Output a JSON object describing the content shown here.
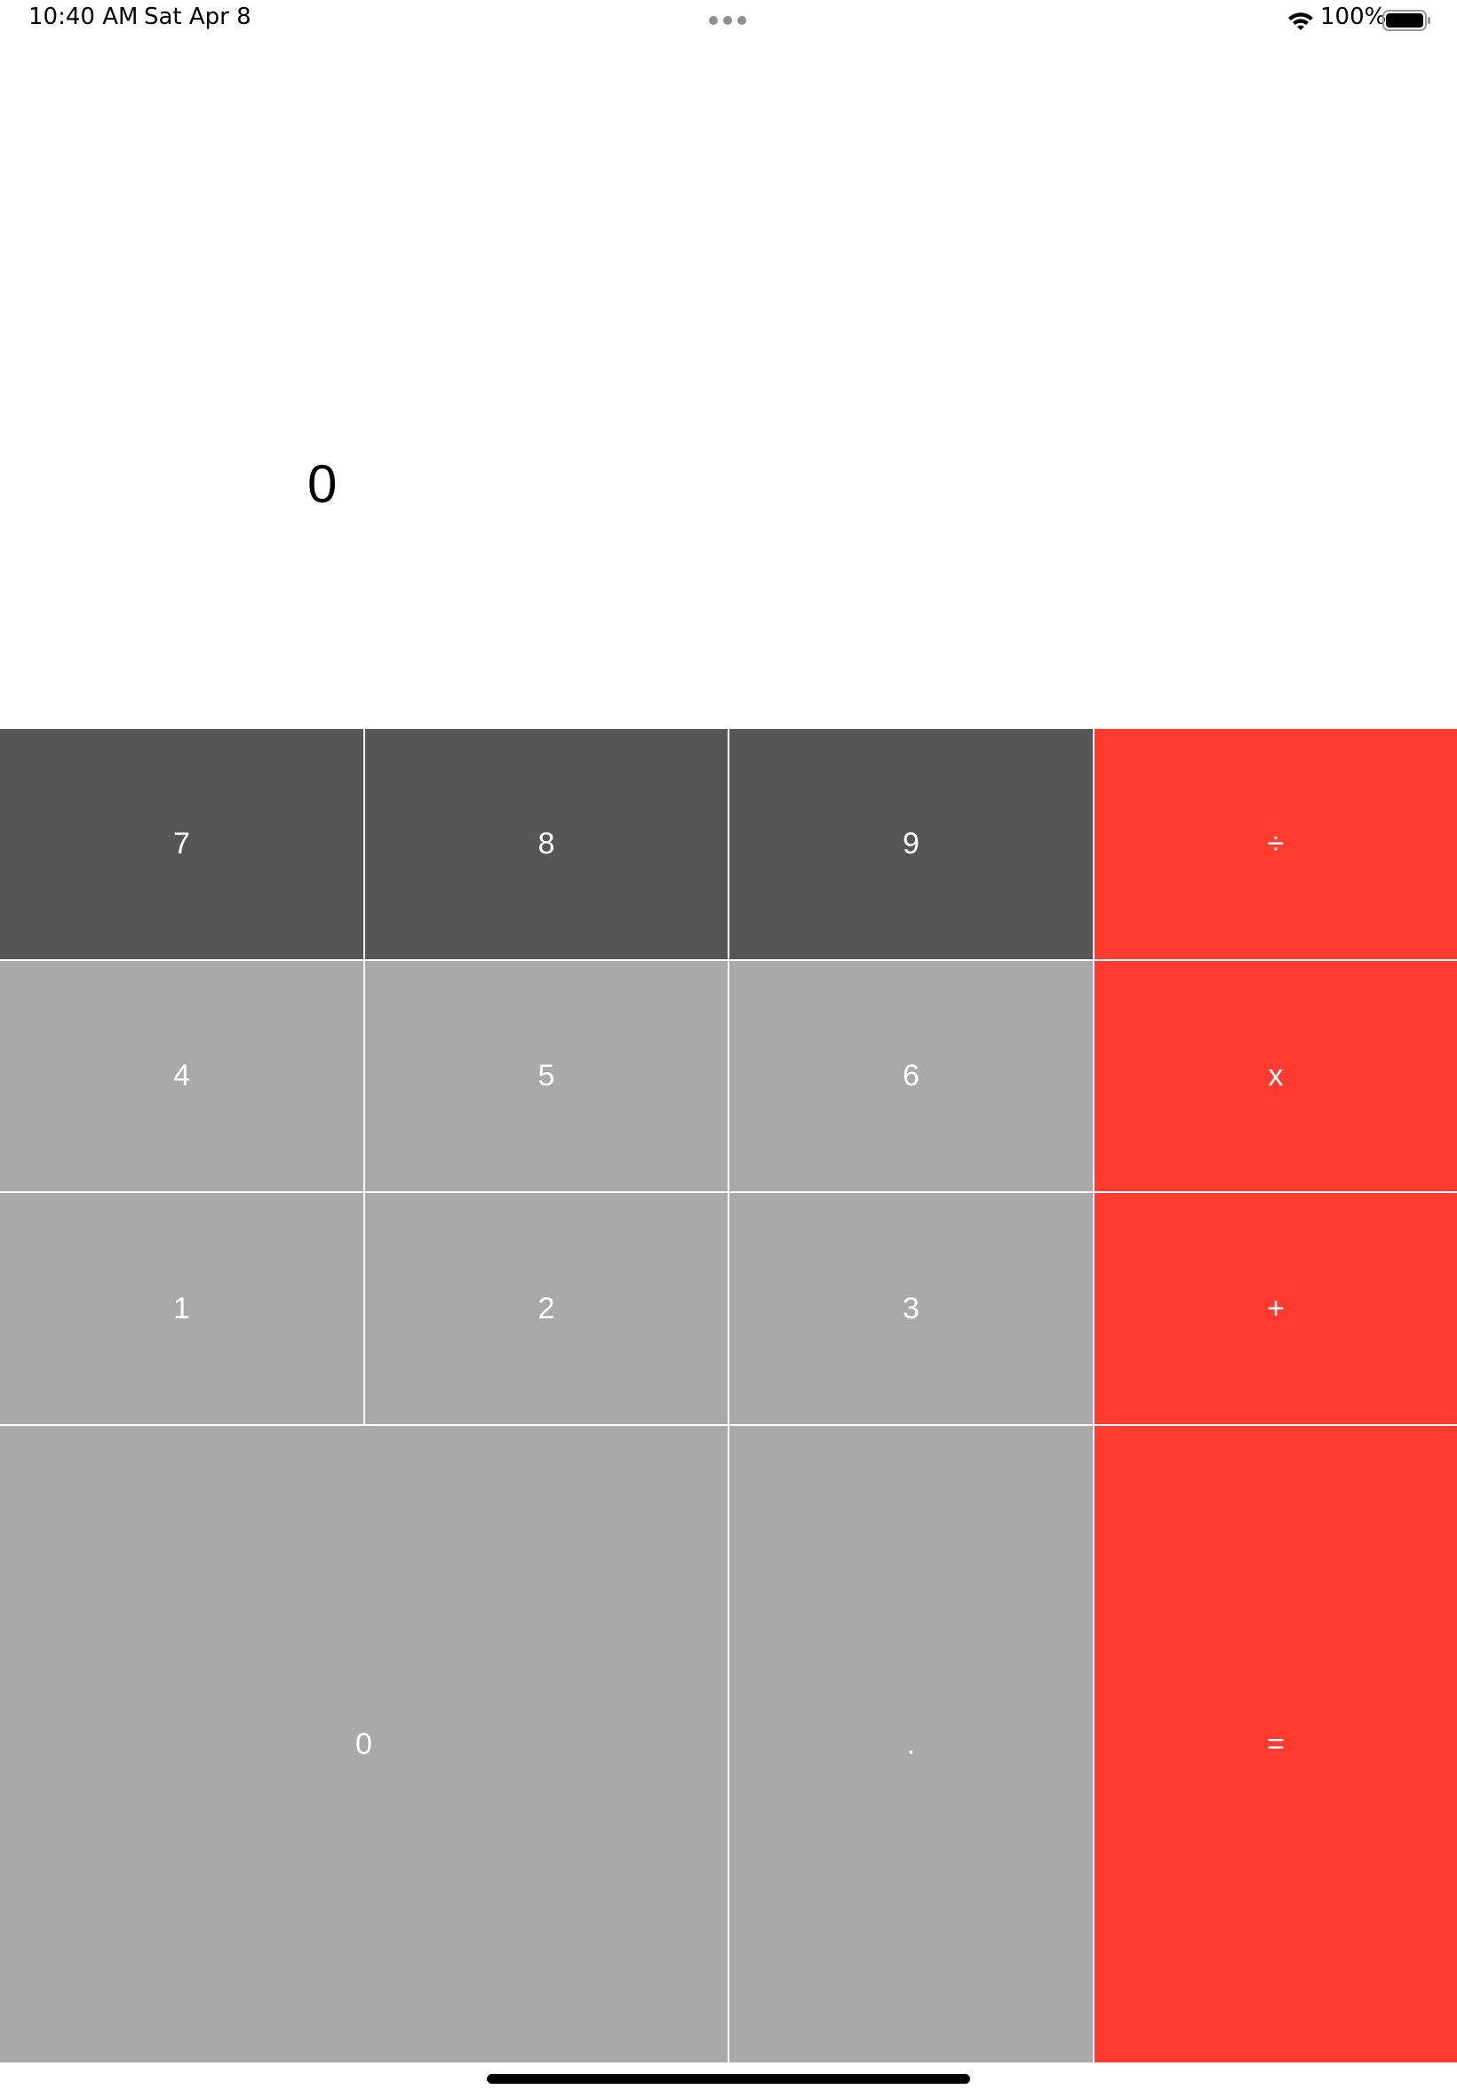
{
  "status_bar": {
    "time": "10:40 AM",
    "date": "Sat Apr 8",
    "battery": "100%",
    "icons": [
      "multitask-dots-icon",
      "wifi-icon",
      "battery-icon"
    ]
  },
  "display": {
    "value": "0"
  },
  "keys": {
    "seven": "7",
    "eight": "8",
    "nine": "9",
    "divide": "÷",
    "four": "4",
    "five": "5",
    "six": "6",
    "multiply": "x",
    "one": "1",
    "two": "2",
    "three": "3",
    "add": "+",
    "zero": "0",
    "decimal": ".",
    "equals": "="
  },
  "colors": {
    "operator": "#ff3b30",
    "digit_dark": "#565656",
    "digit_light": "#a9a9a9",
    "key_text": "#ffffff"
  }
}
